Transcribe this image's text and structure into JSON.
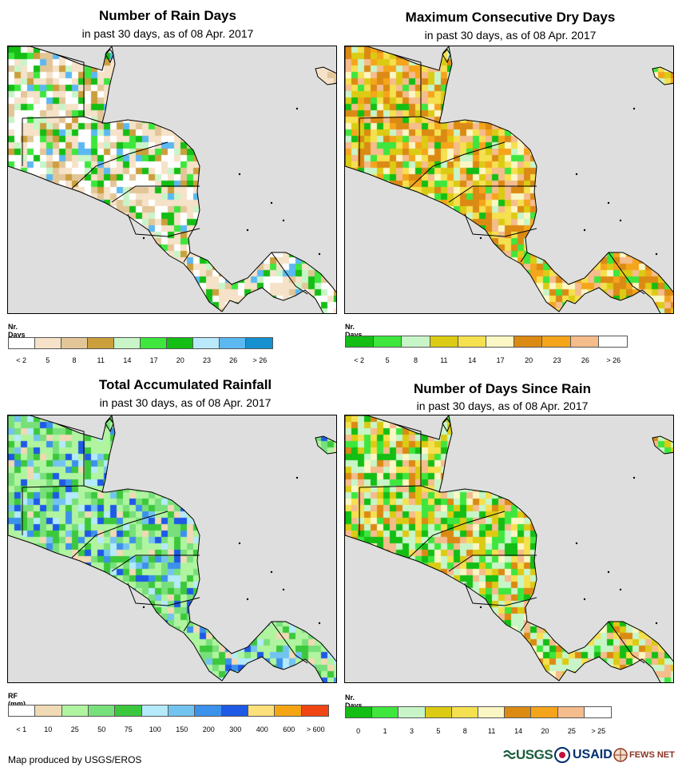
{
  "panels": [
    {
      "id": "rain-days",
      "title": "Number of Rain Days",
      "subtitle": "in past 30 days, as of 08 Apr. 2017",
      "legend_title": "Nr. Days",
      "legend_colors": [
        "#ffffff",
        "#f5e2c8",
        "#e2c698",
        "#cb9f3c",
        "#c8f5c8",
        "#3ee63e",
        "#14be14",
        "#b9e9fa",
        "#5cb8f0",
        "#1790d0"
      ],
      "legend_labels": [
        "< 2",
        "5",
        "8",
        "11",
        "14",
        "17",
        "20",
        "23",
        "26",
        "> 26"
      ]
    },
    {
      "id": "dry-days",
      "title": "Maximum Consecutive Dry Days",
      "subtitle": "in past 30 days, as of 08 Apr. 2017",
      "legend_title": "Nr. Days",
      "legend_colors": [
        "#14be14",
        "#3ee63e",
        "#c8f5c8",
        "#dccb14",
        "#f5e050",
        "#fbf7c4",
        "#db8a14",
        "#f5a51b",
        "#f5bc8c",
        "#ffffff"
      ],
      "legend_labels": [
        "< 2",
        "5",
        "8",
        "11",
        "14",
        "17",
        "20",
        "23",
        "26",
        "> 26"
      ]
    },
    {
      "id": "rainfall",
      "title": "Total Accumulated Rainfall",
      "subtitle": "in past 30 days, as of 08 Apr. 2017",
      "legend_title": "RF (mm)",
      "legend_colors": [
        "#ffffff",
        "#f0d9b5",
        "#b0f4a0",
        "#78e07a",
        "#3cc83c",
        "#b4eafa",
        "#73c3f0",
        "#3c91eb",
        "#1e5ae6",
        "#fbe07c",
        "#f5a514",
        "#f04614"
      ],
      "legend_labels": [
        "< 1",
        "10",
        "25",
        "50",
        "75",
        "100",
        "150",
        "200",
        "300",
        "400",
        "600",
        "> 600"
      ]
    },
    {
      "id": "days-since",
      "title": "Number of Days Since Rain",
      "subtitle": "in past 30 days, as of 08 Apr. 2017",
      "legend_title": "Nr. Days",
      "legend_colors": [
        "#14be14",
        "#3ee63e",
        "#c8f5c8",
        "#dccb14",
        "#f5e050",
        "#fbf7c4",
        "#db8a14",
        "#f5a51b",
        "#f5bc8c",
        "#ffffff"
      ],
      "legend_labels": [
        "0",
        "1",
        "3",
        "5",
        "8",
        "11",
        "14",
        "20",
        "25",
        "> 25"
      ]
    }
  ],
  "credit": "Map produced by USGS/EROS",
  "logos": {
    "usgs": "USGS",
    "usaid": "USAID",
    "fews": "FEWS NET"
  },
  "colors": {
    "ocean": "#dedede",
    "border": "#000000"
  }
}
